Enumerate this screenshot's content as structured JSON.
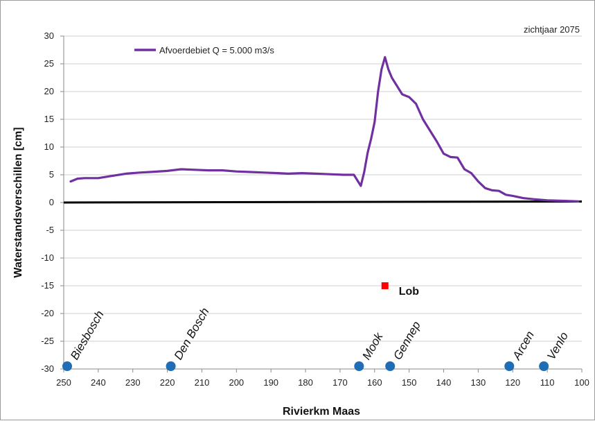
{
  "chart_data": {
    "type": "line",
    "title": "",
    "corner_note": "zichtjaar 2075",
    "xlabel": "Rivierkm Maas",
    "ylabel": "Waterstandsverschillen [cm]",
    "xlim": [
      250,
      100
    ],
    "ylim": [
      -30,
      30
    ],
    "x_ticks": [
      250,
      240,
      230,
      220,
      210,
      200,
      190,
      180,
      170,
      160,
      150,
      140,
      130,
      120,
      110,
      100
    ],
    "y_ticks": [
      30,
      25,
      20,
      15,
      10,
      5,
      0,
      -5,
      -10,
      -15,
      -20,
      -25,
      -30
    ],
    "grid": "horizontal",
    "legend_position": "top-left",
    "colors": {
      "series": "#7030a0",
      "zero_line": "#000000",
      "markers": "#1f6eb5",
      "annotation": "#ff0000"
    },
    "series": [
      {
        "name": "Afvoerdebiet Q = 5.000 m3/s",
        "points": [
          [
            248,
            3.8
          ],
          [
            246,
            4.3
          ],
          [
            244,
            4.4
          ],
          [
            240,
            4.4
          ],
          [
            236,
            4.8
          ],
          [
            232,
            5.2
          ],
          [
            228,
            5.4
          ],
          [
            225,
            5.5
          ],
          [
            220,
            5.7
          ],
          [
            216,
            6.0
          ],
          [
            212,
            5.9
          ],
          [
            208,
            5.8
          ],
          [
            204,
            5.8
          ],
          [
            200,
            5.6
          ],
          [
            196,
            5.5
          ],
          [
            192,
            5.4
          ],
          [
            188,
            5.3
          ],
          [
            185,
            5.2
          ],
          [
            181,
            5.3
          ],
          [
            177,
            5.2
          ],
          [
            173,
            5.1
          ],
          [
            169,
            5.0
          ],
          [
            166,
            5.0
          ],
          [
            164,
            3.0
          ],
          [
            163,
            5.5
          ],
          [
            162,
            9.0
          ],
          [
            161,
            11.5
          ],
          [
            160,
            14.5
          ],
          [
            159,
            20.0
          ],
          [
            158,
            24.0
          ],
          [
            157,
            26.2
          ],
          [
            156,
            24.0
          ],
          [
            155,
            22.5
          ],
          [
            154,
            21.5
          ],
          [
            152,
            19.5
          ],
          [
            150,
            19.0
          ],
          [
            148,
            17.8
          ],
          [
            146,
            15.0
          ],
          [
            144,
            13.0
          ],
          [
            142,
            11.0
          ],
          [
            140,
            8.8
          ],
          [
            138,
            8.2
          ],
          [
            136,
            8.1
          ],
          [
            134,
            6.0
          ],
          [
            132,
            5.3
          ],
          [
            130,
            3.8
          ],
          [
            128,
            2.6
          ],
          [
            126,
            2.2
          ],
          [
            124,
            2.1
          ],
          [
            122,
            1.4
          ],
          [
            120,
            1.2
          ],
          [
            117,
            0.8
          ],
          [
            114,
            0.6
          ],
          [
            110,
            0.4
          ],
          [
            105,
            0.3
          ],
          [
            101,
            0.2
          ]
        ]
      }
    ],
    "reference_line": {
      "y": 0
    },
    "locations": [
      {
        "label": "Biesbosch",
        "x": 249,
        "y": -29.5
      },
      {
        "label": "Den Bosch",
        "x": 219,
        "y": -29.5
      },
      {
        "label": "Mook",
        "x": 164.5,
        "y": -29.5
      },
      {
        "label": "Gennep",
        "x": 155.5,
        "y": -29.5
      },
      {
        "label": "Arcen",
        "x": 121,
        "y": -29.5
      },
      {
        "label": "Venlo",
        "x": 111,
        "y": -29.5
      }
    ],
    "annotation": {
      "label": "Lob",
      "x": 157,
      "y": -15
    }
  }
}
